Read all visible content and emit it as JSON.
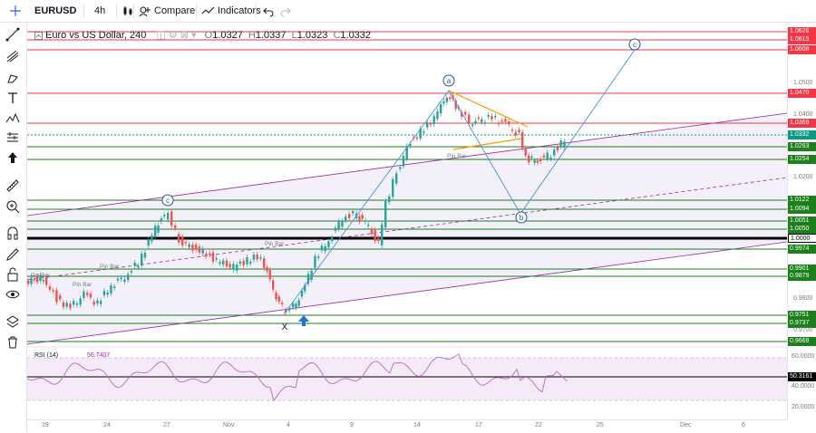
{
  "toolbar": {
    "symbol": "EURUSD",
    "interval": "4h",
    "compare_label": "Compare",
    "indicators_label": "Indicators"
  },
  "legend": {
    "name": "Euro vs US Dollar, 240",
    "ohlc": {
      "O": "1.0327",
      "H": "1.0337",
      "L": "1.0323",
      "C": "1.0332"
    }
  },
  "rsi_legend": {
    "name": "RSI (14)",
    "value": "56.7407"
  },
  "chart_data": {
    "type": "candlestick",
    "x_ticks": [
      "19",
      "24",
      "27",
      "Nov",
      "4",
      "9",
      "14",
      "17",
      "22",
      "25",
      "Dec",
      "6"
    ],
    "price_levels": [
      {
        "value": "1.0626",
        "color": "#f23645"
      },
      {
        "value": "1.0615",
        "color": "#f23645"
      },
      {
        "value": "1.0608",
        "color": "#f23645"
      },
      {
        "value": "1.0470",
        "color": "#f23645"
      },
      {
        "value": "1.0369",
        "color": "#f23645"
      },
      {
        "value": "1.0332",
        "color": "#089981"
      },
      {
        "value": "1.0293",
        "color": "#1b7f1b"
      },
      {
        "value": "1.0254",
        "color": "#1b7f1b"
      },
      {
        "value": "1.0122",
        "color": "#1b7f1b"
      },
      {
        "value": "1.0094",
        "color": "#1b7f1b"
      },
      {
        "value": "1.0051",
        "color": "#1b7f1b"
      },
      {
        "value": "1.0050",
        "color": "#1b7f1b"
      },
      {
        "value": "1.0000",
        "color": "#000000"
      },
      {
        "value": "0.9974",
        "color": "#1b7f1b"
      },
      {
        "value": "0.9901",
        "color": "#1b7f1b"
      },
      {
        "value": "0.9879",
        "color": "#1b7f1b"
      },
      {
        "value": "0.9751",
        "color": "#1b7f1b"
      },
      {
        "value": "0.9737",
        "color": "#1b7f1b"
      },
      {
        "value": "0.9669",
        "color": "#1b7f1b"
      }
    ],
    "axis_ticks": [
      "1.0500",
      "1.0400",
      "1.0200",
      "0.9800",
      "0.9700"
    ],
    "rsi_ticks": [
      "60.0000",
      "40.0000",
      "20.0000"
    ],
    "rsi_value_label": "50.3161",
    "annotations": [
      "a",
      "b",
      "c",
      "c",
      "X",
      "Pin Bar",
      "Pin Bar",
      "Pin Bar",
      "Pin Bar",
      "Pin Bar"
    ]
  }
}
